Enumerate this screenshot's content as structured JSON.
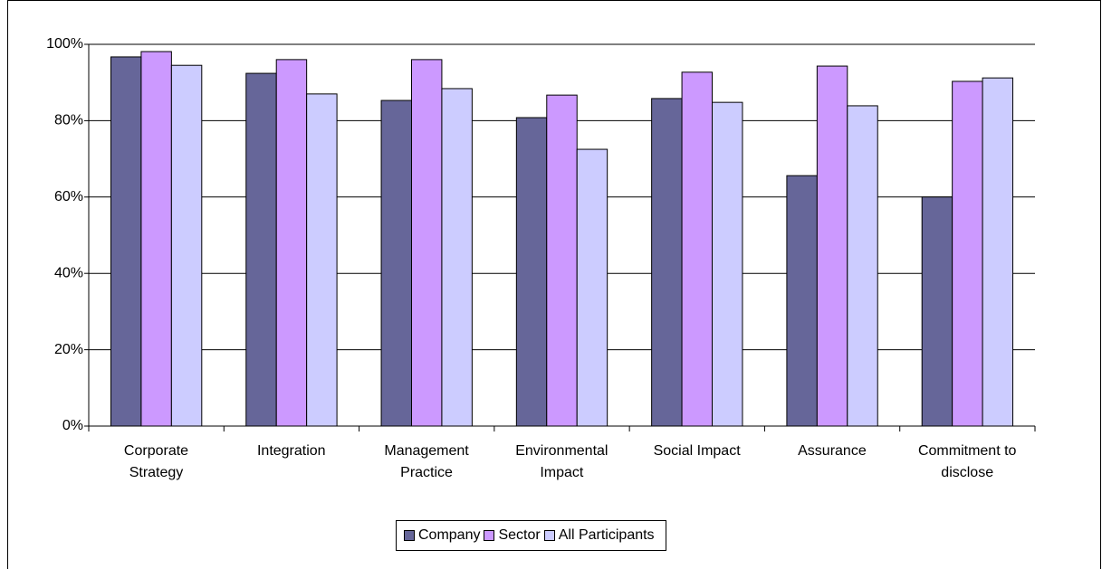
{
  "chart_data": {
    "type": "bar",
    "categories": [
      "Corporate\nStrategy",
      "Integration",
      "Management\nPractice",
      "Environmental\nImpact",
      "Social Impact",
      "Assurance",
      "Commitment to\ndisclose"
    ],
    "series": [
      {
        "name": "Company",
        "color": "#666699",
        "values": [
          96.7,
          92.4,
          85.3,
          80.8,
          85.8,
          65.6,
          60
        ]
      },
      {
        "name": "Sector",
        "color": "#cc99ff",
        "values": [
          98.1,
          96,
          96,
          86.7,
          92.7,
          94.3,
          90.3
        ]
      },
      {
        "name": "All Participants",
        "color": "#ccccff",
        "values": [
          94.5,
          87,
          88.4,
          72.5,
          84.8,
          83.9,
          91.2
        ]
      }
    ],
    "ylim": [
      0,
      100
    ],
    "yticks": [
      {
        "value": 0,
        "label": "0%"
      },
      {
        "value": 20,
        "label": "20%"
      },
      {
        "value": 40,
        "label": "40%"
      },
      {
        "value": 60,
        "label": "60%"
      },
      {
        "value": 80,
        "label": "80%"
      },
      {
        "value": 100,
        "label": "100%"
      }
    ],
    "grid": true,
    "legend": "bottom"
  }
}
